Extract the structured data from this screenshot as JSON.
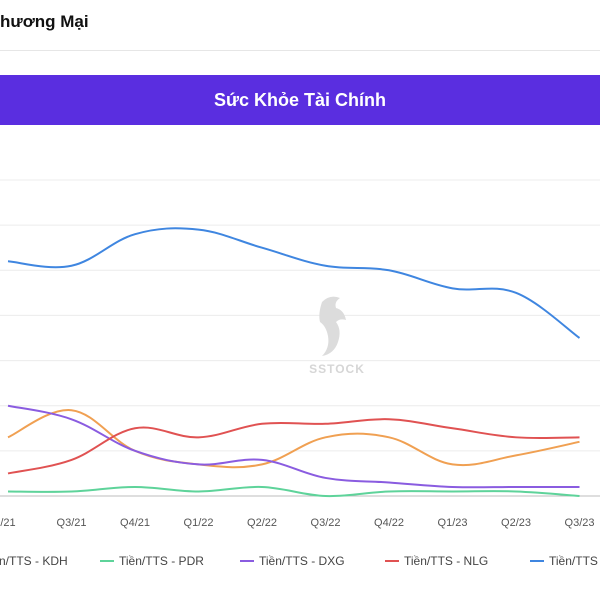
{
  "header": {
    "title": "hương Mại"
  },
  "banner": {
    "title": "Sức Khỏe Tài Chính"
  },
  "watermark": {
    "text": "SSTOCK"
  },
  "chart_data": {
    "type": "line",
    "title": "Sức Khỏe Tài Chính",
    "xlabel": "",
    "ylabel": "",
    "categories": [
      "/21",
      "Q3/21",
      "Q4/21",
      "Q1/22",
      "Q2/22",
      "Q3/22",
      "Q4/22",
      "Q1/23",
      "Q2/23",
      "Q3/23"
    ],
    "ylim": [
      0,
      0.7
    ],
    "grid": true,
    "legend_position": "bottom",
    "series": [
      {
        "name": "n/TTS - KDH",
        "color": "#f0a052",
        "values": [
          0.13,
          0.19,
          0.1,
          0.07,
          0.07,
          0.13,
          0.13,
          0.07,
          0.09,
          0.12
        ]
      },
      {
        "name": "Tiền/TTS - PDR",
        "color": "#5ed39a",
        "values": [
          0.01,
          0.01,
          0.02,
          0.01,
          0.02,
          0.0,
          0.01,
          0.01,
          0.01,
          0.0
        ]
      },
      {
        "name": "Tiền/TTS - DXG",
        "color": "#8a5ce0",
        "values": [
          0.2,
          0.17,
          0.1,
          0.07,
          0.08,
          0.04,
          0.03,
          0.02,
          0.02,
          0.02
        ]
      },
      {
        "name": "Tiền/TTS - NLG",
        "color": "#e05252",
        "values": [
          0.05,
          0.08,
          0.15,
          0.13,
          0.16,
          0.16,
          0.17,
          0.15,
          0.13,
          0.13
        ]
      },
      {
        "name": "Tiền/TTS",
        "color": "#3f86e0",
        "values": [
          0.52,
          0.51,
          0.58,
          0.59,
          0.55,
          0.51,
          0.5,
          0.46,
          0.45,
          0.35
        ]
      }
    ]
  }
}
